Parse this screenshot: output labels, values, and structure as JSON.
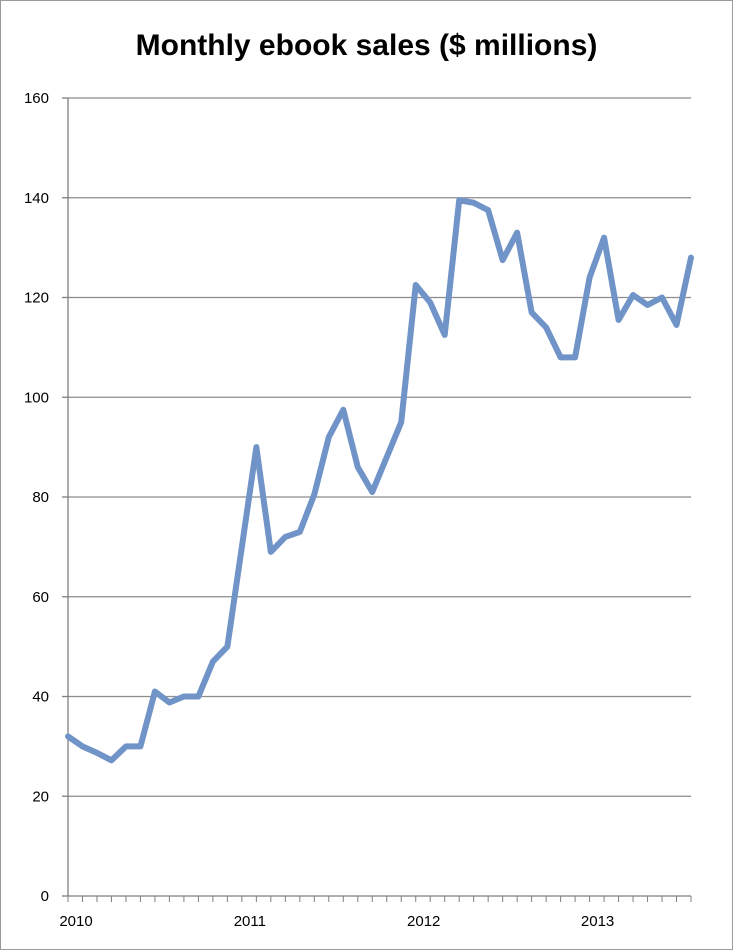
{
  "chart_data": {
    "type": "line",
    "title": "Monthly ebook sales ($ millions)",
    "xlabel": "",
    "ylabel": "",
    "ylim": [
      0,
      160
    ],
    "yticks": [
      0,
      20,
      40,
      60,
      80,
      100,
      120,
      140,
      160
    ],
    "xlim": [
      "2010-01",
      "2013-08"
    ],
    "xticks": [
      {
        "label": "2010",
        "date": "2010-01"
      },
      {
        "label": "2011",
        "date": "2011-01"
      },
      {
        "label": "2012",
        "date": "2012-01"
      },
      {
        "label": "2013",
        "date": "2013-01"
      }
    ],
    "grid": "horizontal",
    "line_color": "#7094c8",
    "x": [
      "2010-01",
      "2010-02",
      "2010-03",
      "2010-04",
      "2010-05",
      "2010-06",
      "2010-07",
      "2010-08",
      "2010-09",
      "2010-10",
      "2010-11",
      "2010-12",
      "2011-01",
      "2011-02",
      "2011-03",
      "2011-04",
      "2011-05",
      "2011-06",
      "2011-07",
      "2011-08",
      "2011-09",
      "2011-10",
      "2011-11",
      "2011-12",
      "2012-01",
      "2012-02",
      "2012-03",
      "2012-04",
      "2012-05",
      "2012-06",
      "2012-07",
      "2012-08",
      "2012-09",
      "2012-10",
      "2012-11",
      "2012-12",
      "2013-01",
      "2013-02",
      "2013-03",
      "2013-04",
      "2013-05",
      "2013-06",
      "2013-07",
      "2013-08"
    ],
    "series": [
      {
        "values": [
          32,
          30,
          28.7,
          27.2,
          30,
          30,
          41,
          38.8,
          40,
          40,
          47,
          50,
          70,
          90,
          69,
          72,
          73,
          80.5,
          92,
          97.5,
          86,
          81,
          88,
          95,
          122.5,
          119,
          112.5,
          139.5,
          139,
          137.5,
          127.5,
          133,
          117,
          114,
          108,
          108,
          124,
          132,
          115.5,
          120.5,
          118.5,
          120,
          114.5,
          128
        ]
      }
    ]
  }
}
